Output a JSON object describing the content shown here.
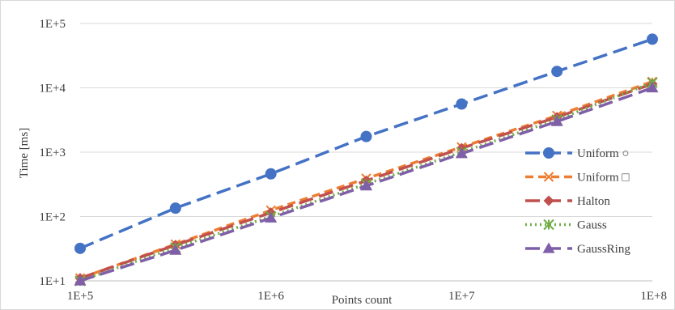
{
  "chart_data": {
    "type": "line",
    "title": "",
    "xlabel": "Points count",
    "ylabel": "Time [ms]",
    "x_scale": "log",
    "y_scale": "log",
    "xlim": [
      100000,
      100000000
    ],
    "ylim": [
      10,
      100000
    ],
    "x_ticks": [
      "1E+5",
      "1E+6",
      "1E+7",
      "1E+8"
    ],
    "y_ticks": [
      "1E+1",
      "1E+2",
      "1E+3",
      "1E+4",
      "1E+5"
    ],
    "grid": "horizontal",
    "legend_position": "right",
    "x": [
      100000,
      316228,
      1000000,
      3162278,
      10000000,
      31622777,
      100000000
    ],
    "series": [
      {
        "name": "Uniform ○",
        "values": [
          32,
          135,
          460,
          1750,
          5600,
          18000,
          57000
        ],
        "color": "#4472c4",
        "marker": "circle",
        "dash": "long-dash"
      },
      {
        "name": "Uniform □",
        "values": [
          11,
          37,
          125,
          390,
          1200,
          3700,
          12500
        ],
        "color": "#ed7d31",
        "marker": "x",
        "dash": "dash"
      },
      {
        "name": "Halton",
        "values": [
          11,
          36,
          115,
          360,
          1150,
          3500,
          11500
        ],
        "color": "#c0504d",
        "marker": "diamond",
        "dash": "long-dash"
      },
      {
        "name": "Gauss",
        "values": [
          10,
          33,
          100,
          320,
          1000,
          3200,
          12000
        ],
        "color": "#70ad47",
        "marker": "star",
        "dash": "dot"
      },
      {
        "name": "GaussRing",
        "values": [
          10,
          30,
          95,
          300,
          950,
          3000,
          10000
        ],
        "color": "#7f5fa8",
        "marker": "triangle",
        "dash": "long-dash"
      }
    ]
  }
}
